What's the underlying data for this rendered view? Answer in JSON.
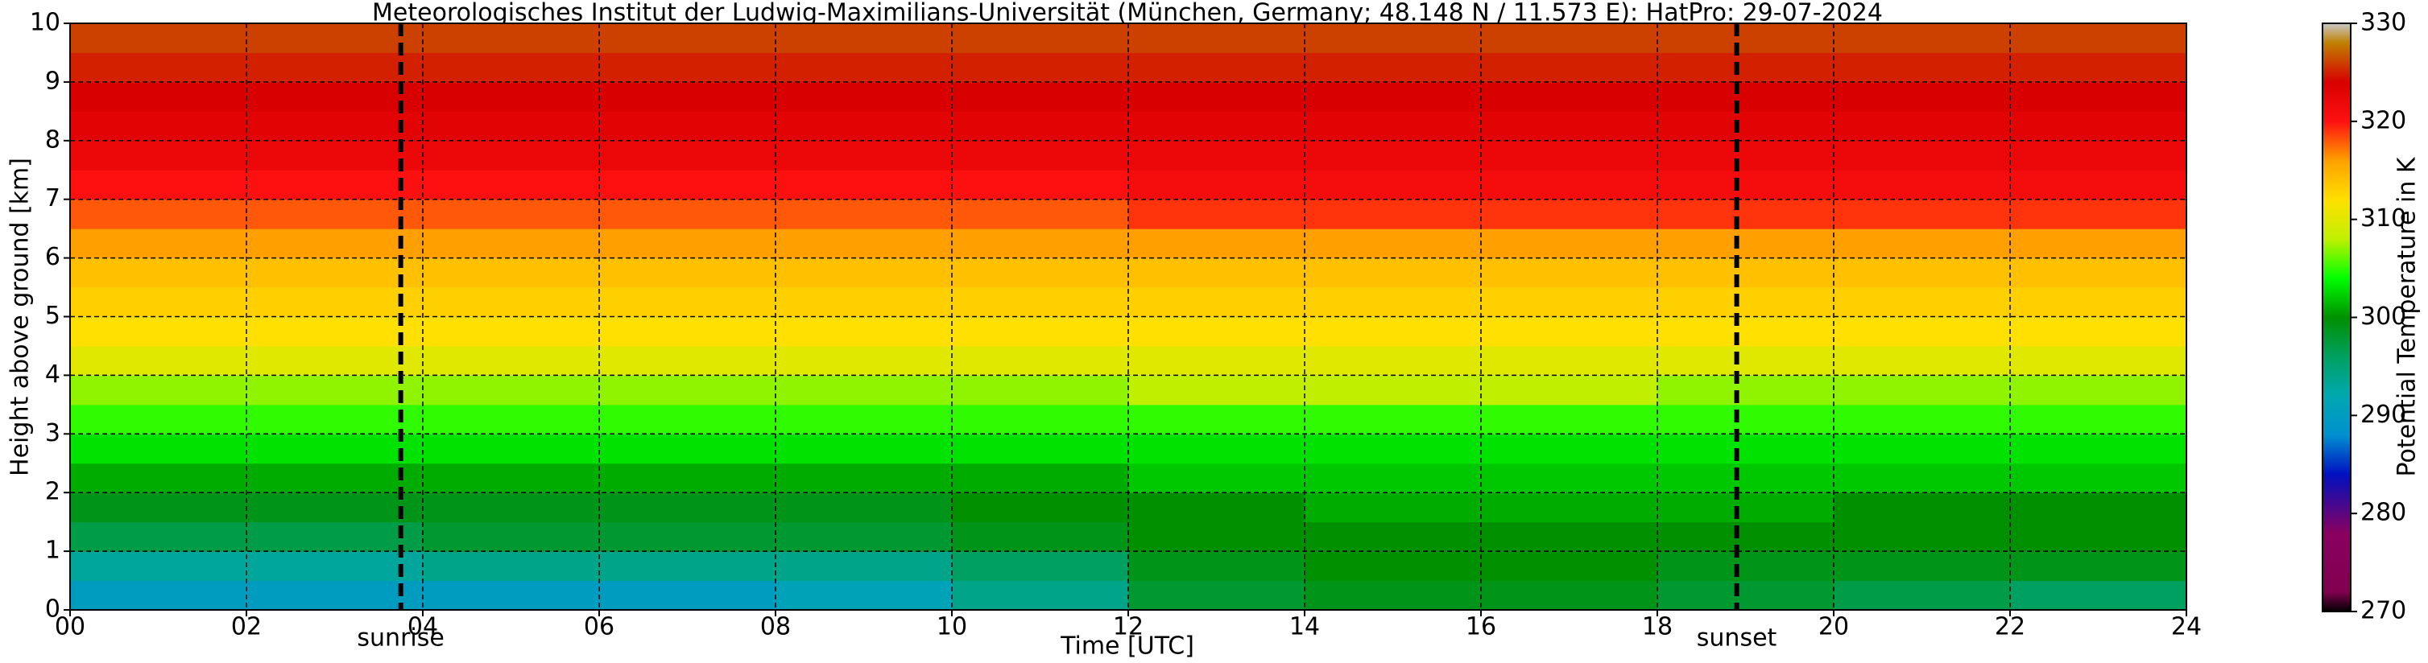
{
  "chart_data": {
    "type": "heatmap",
    "title": "Meteorologisches Institut der Ludwig-Maximilians-Universität (München, Germany; 48.148 N / 11.573 E):    HatPro: 29-07-2024",
    "xlabel": "Time [UTC]",
    "ylabel": "Height above ground [km]",
    "xbins": [
      0,
      2,
      4,
      6,
      8,
      10,
      12,
      14,
      16,
      18,
      20,
      22,
      24
    ],
    "ybins": [
      0,
      0.5,
      1,
      1.5,
      2,
      2.5,
      3,
      3.5,
      4,
      4.5,
      5,
      5.5,
      6,
      6.5,
      7,
      7.5,
      8,
      8.5,
      9,
      9.5,
      10
    ],
    "values": [
      [
        290,
        290,
        290,
        290,
        291,
        294,
        298,
        299,
        299,
        298,
        297,
        296
      ],
      [
        293,
        293,
        294,
        294,
        294,
        296,
        299,
        300,
        300,
        299,
        299,
        299
      ],
      [
        297,
        297,
        298,
        298,
        298,
        299,
        300,
        300,
        300,
        300,
        300,
        300
      ],
      [
        299,
        299,
        299,
        299,
        299,
        300,
        300,
        301,
        301,
        301,
        300,
        300
      ],
      [
        301,
        301,
        301,
        301,
        301,
        301,
        302,
        302,
        302,
        302,
        302,
        302
      ],
      [
        303,
        303,
        303,
        303,
        303,
        303,
        303,
        303,
        303,
        303,
        303,
        303
      ],
      [
        305,
        305,
        305,
        305,
        305,
        305,
        305,
        305,
        305,
        305,
        305,
        305
      ],
      [
        307,
        307,
        307,
        307,
        307,
        307,
        308,
        308,
        308,
        307,
        307,
        307
      ],
      [
        310,
        310,
        310,
        310,
        310,
        310,
        310,
        310,
        310,
        310,
        310,
        310
      ],
      [
        312,
        312,
        312,
        312,
        312,
        312,
        312,
        312,
        312,
        312,
        312,
        312
      ],
      [
        313,
        313,
        313,
        313,
        313,
        313,
        313,
        313,
        313,
        313,
        313,
        313
      ],
      [
        314,
        314,
        314,
        314,
        314,
        314,
        314,
        314,
        314,
        314,
        314,
        314
      ],
      [
        316,
        316,
        316,
        316,
        316,
        316,
        316,
        316,
        316,
        316,
        316,
        316
      ],
      [
        318,
        318,
        318,
        318,
        318,
        318,
        319,
        319,
        319,
        319,
        319,
        319
      ],
      [
        320,
        320,
        320,
        320,
        320,
        320,
        321,
        321,
        321,
        321,
        321,
        321
      ],
      [
        322,
        322,
        322,
        322,
        322,
        322,
        322,
        322,
        322,
        322,
        322,
        322
      ],
      [
        323,
        323,
        323,
        323,
        323,
        323,
        323,
        323,
        323,
        323,
        323,
        323
      ],
      [
        324,
        324,
        324,
        324,
        324,
        324,
        324,
        324,
        324,
        324,
        324,
        324
      ],
      [
        325,
        325,
        325,
        325,
        325,
        325,
        325,
        325,
        325,
        325,
        325,
        325
      ],
      [
        326,
        326,
        326,
        326,
        326,
        326,
        326,
        326,
        326,
        326,
        326,
        326
      ]
    ],
    "xlim": [
      0,
      24
    ],
    "ylim": [
      0,
      10
    ],
    "xticks": [
      {
        "value": 0,
        "label": "00"
      },
      {
        "value": 2,
        "label": "02"
      },
      {
        "value": 4,
        "label": "04"
      },
      {
        "value": 6,
        "label": "06"
      },
      {
        "value": 8,
        "label": "08"
      },
      10,
      12,
      14,
      16,
      18,
      20,
      22,
      24
    ],
    "yticks": [
      0,
      1,
      2,
      3,
      4,
      5,
      6,
      7,
      8,
      9,
      10
    ],
    "grid": true,
    "vlines": [
      {
        "x": 3.75,
        "label": "sunrise"
      },
      {
        "x": 18.9,
        "label": "sunset"
      }
    ],
    "colorbar": {
      "label": "Potential Temperature in K",
      "clim": [
        270,
        330
      ],
      "ticks": [
        270,
        280,
        290,
        300,
        310,
        320,
        330
      ],
      "stops": [
        270,
        272,
        278,
        284,
        288,
        292,
        296,
        300,
        304,
        308,
        312,
        316,
        320,
        324,
        328,
        330
      ],
      "colors": [
        "#000000",
        "#800050",
        "#8a0060",
        "#0010c0",
        "#0090d0",
        "#00a8b0",
        "#00a060",
        "#009000",
        "#00ff00",
        "#c0f000",
        "#ffe000",
        "#ffa000",
        "#ff1010",
        "#d80000",
        "#c08000",
        "#c8c8c8"
      ]
    }
  }
}
